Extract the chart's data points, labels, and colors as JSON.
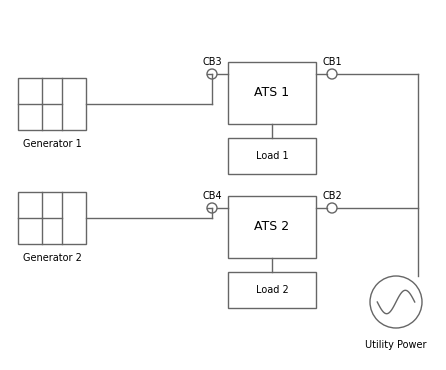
{
  "background_color": "#ffffff",
  "line_color": "#666666",
  "text_color": "#000000",
  "labels": {
    "gen1": "Generator 1",
    "gen2": "Generator 2",
    "ats1": "ATS 1",
    "ats2": "ATS 2",
    "load1": "Load 1",
    "load2": "Load 2",
    "utility": "Utility Power",
    "cb1": "CB1",
    "cb2": "CB2",
    "cb3": "CB3",
    "cb4": "CB4"
  },
  "font_size_label": 7.0,
  "font_size_box": 9.0,
  "line_width": 1.0,
  "figsize": [
    4.46,
    3.7
  ],
  "dpi": 100
}
